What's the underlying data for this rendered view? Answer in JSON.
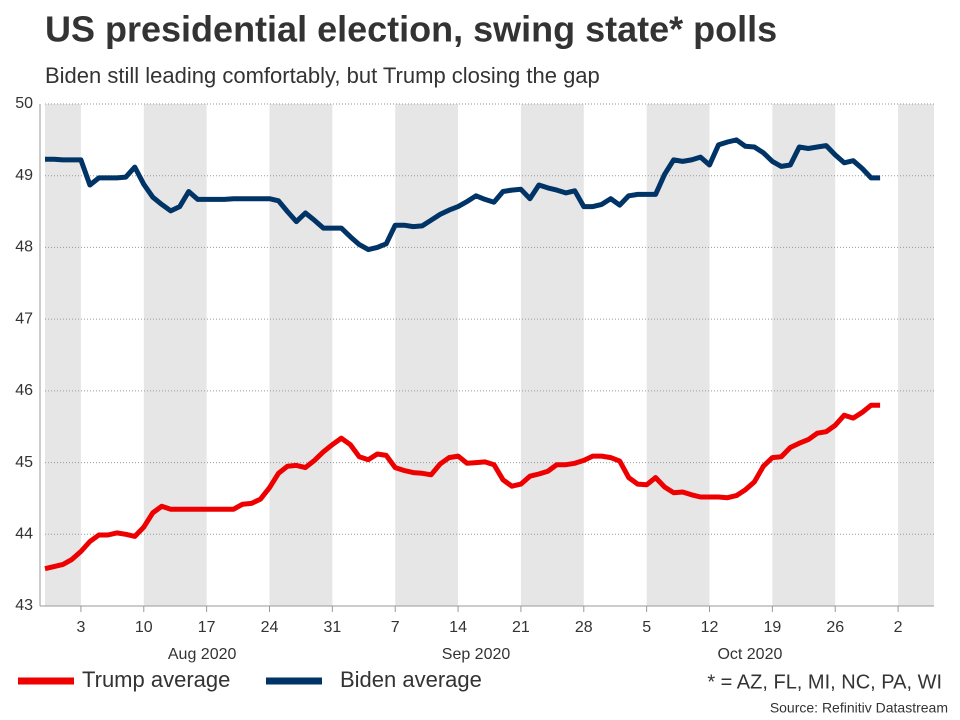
{
  "chart_data": {
    "type": "line",
    "title": "US presidential election, swing state* polls",
    "subtitle": "Biden still leading comfortably, but Trump closing the gap",
    "x": [
      "2020-07-30",
      "2020-07-31",
      "2020-08-01",
      "2020-08-02",
      "2020-08-03",
      "2020-08-04",
      "2020-08-05",
      "2020-08-06",
      "2020-08-07",
      "2020-08-08",
      "2020-08-09",
      "2020-08-10",
      "2020-08-11",
      "2020-08-12",
      "2020-08-13",
      "2020-08-14",
      "2020-08-15",
      "2020-08-16",
      "2020-08-17",
      "2020-08-18",
      "2020-08-19",
      "2020-08-20",
      "2020-08-21",
      "2020-08-22",
      "2020-08-23",
      "2020-08-24",
      "2020-08-25",
      "2020-08-26",
      "2020-08-27",
      "2020-08-28",
      "2020-08-29",
      "2020-08-30",
      "2020-08-31",
      "2020-09-01",
      "2020-09-02",
      "2020-09-03",
      "2020-09-04",
      "2020-09-05",
      "2020-09-06",
      "2020-09-07",
      "2020-09-08",
      "2020-09-09",
      "2020-09-10",
      "2020-09-11",
      "2020-09-12",
      "2020-09-13",
      "2020-09-14",
      "2020-09-15",
      "2020-09-16",
      "2020-09-17",
      "2020-09-18",
      "2020-09-19",
      "2020-09-20",
      "2020-09-21",
      "2020-09-22",
      "2020-09-23",
      "2020-09-24",
      "2020-09-25",
      "2020-09-26",
      "2020-09-27",
      "2020-09-28",
      "2020-09-29",
      "2020-09-30",
      "2020-10-01",
      "2020-10-02",
      "2020-10-03",
      "2020-10-04",
      "2020-10-05",
      "2020-10-06",
      "2020-10-07",
      "2020-10-08",
      "2020-10-09",
      "2020-10-10",
      "2020-10-11",
      "2020-10-12",
      "2020-10-13",
      "2020-10-14",
      "2020-10-15",
      "2020-10-16",
      "2020-10-17",
      "2020-10-18",
      "2020-10-19",
      "2020-10-20",
      "2020-10-21",
      "2020-10-22",
      "2020-10-23",
      "2020-10-24",
      "2020-10-25",
      "2020-10-26",
      "2020-10-27",
      "2020-10-28",
      "2020-10-29",
      "2020-10-30",
      "2020-10-31"
    ],
    "series": [
      {
        "name": "Trump average",
        "color": "#ee0000",
        "values": [
          43.52,
          43.55,
          43.58,
          43.65,
          43.76,
          43.9,
          43.99,
          43.99,
          44.02,
          44.0,
          43.97,
          44.1,
          44.3,
          44.39,
          44.35,
          44.35,
          44.35,
          44.35,
          44.35,
          44.35,
          44.35,
          44.35,
          44.42,
          44.43,
          44.49,
          44.65,
          44.85,
          44.95,
          44.96,
          44.93,
          45.03,
          45.15,
          45.25,
          45.34,
          45.25,
          45.08,
          45.04,
          45.12,
          45.1,
          44.93,
          44.89,
          44.86,
          44.85,
          44.83,
          44.98,
          45.07,
          45.09,
          44.99,
          45.0,
          45.01,
          44.97,
          44.76,
          44.67,
          44.7,
          44.81,
          44.84,
          44.88,
          44.97,
          44.97,
          44.99,
          45.03,
          45.09,
          45.09,
          45.07,
          45.02,
          44.79,
          44.7,
          44.69,
          44.79,
          44.66,
          44.58,
          44.59,
          44.55,
          44.52,
          44.52,
          44.52,
          44.51,
          44.54,
          44.62,
          44.73,
          44.95,
          45.07,
          45.08,
          45.21,
          45.27,
          45.32,
          45.41,
          45.43,
          45.52,
          45.66,
          45.62,
          45.7,
          45.8,
          45.8
        ]
      },
      {
        "name": "Biden average",
        "color": "#003366",
        "values": [
          49.23,
          49.23,
          49.22,
          49.22,
          49.22,
          48.87,
          48.97,
          48.97,
          48.97,
          48.98,
          49.12,
          48.88,
          48.7,
          48.6,
          48.51,
          48.57,
          48.78,
          48.67,
          48.67,
          48.67,
          48.67,
          48.68,
          48.68,
          48.68,
          48.68,
          48.68,
          48.65,
          48.5,
          48.36,
          48.48,
          48.38,
          48.27,
          48.27,
          48.27,
          48.15,
          48.04,
          47.97,
          48.0,
          48.05,
          48.31,
          48.31,
          48.29,
          48.3,
          48.38,
          48.46,
          48.52,
          48.57,
          48.64,
          48.72,
          48.67,
          48.63,
          48.78,
          48.8,
          48.81,
          48.68,
          48.87,
          48.83,
          48.8,
          48.76,
          48.79,
          48.57,
          48.57,
          48.6,
          48.68,
          48.59,
          48.72,
          48.74,
          48.74,
          48.74,
          49.02,
          49.22,
          49.2,
          49.22,
          49.26,
          49.15,
          49.43,
          49.47,
          49.5,
          49.41,
          49.4,
          49.32,
          49.2,
          49.13,
          49.15,
          49.4,
          49.38,
          49.4,
          49.42,
          49.29,
          49.18,
          49.21,
          49.1,
          48.97,
          48.97
        ]
      }
    ],
    "xlim": [
      "2020-07-30",
      "2020-11-06"
    ],
    "xticks": [
      {
        "value": "2020-08-03",
        "label": "3"
      },
      {
        "value": "2020-08-10",
        "label": "10"
      },
      {
        "value": "2020-08-17",
        "label": "17"
      },
      {
        "value": "2020-08-24",
        "label": "24"
      },
      {
        "value": "2020-08-31",
        "label": "31"
      },
      {
        "value": "2020-09-07",
        "label": "7"
      },
      {
        "value": "2020-09-14",
        "label": "14"
      },
      {
        "value": "2020-09-21",
        "label": "21"
      },
      {
        "value": "2020-09-28",
        "label": "28"
      },
      {
        "value": "2020-10-05",
        "label": "5"
      },
      {
        "value": "2020-10-12",
        "label": "12"
      },
      {
        "value": "2020-10-19",
        "label": "19"
      },
      {
        "value": "2020-10-26",
        "label": "26"
      },
      {
        "value": "2020-11-02",
        "label": "2"
      }
    ],
    "month_labels": [
      {
        "value": "2020-08",
        "label": "Aug 2020"
      },
      {
        "value": "2020-09",
        "label": "Sep 2020"
      },
      {
        "value": "2020-10",
        "label": "Oct 2020"
      }
    ],
    "ylim": [
      43,
      50
    ],
    "yticks": [
      43,
      44,
      45,
      46,
      47,
      48,
      49,
      50
    ],
    "grid": true,
    "week_bands": true,
    "legend": "bottom-left",
    "footnote": "* = AZ, FL, MI, NC, PA, WI",
    "source": "Source: Refinitiv Datastream"
  }
}
